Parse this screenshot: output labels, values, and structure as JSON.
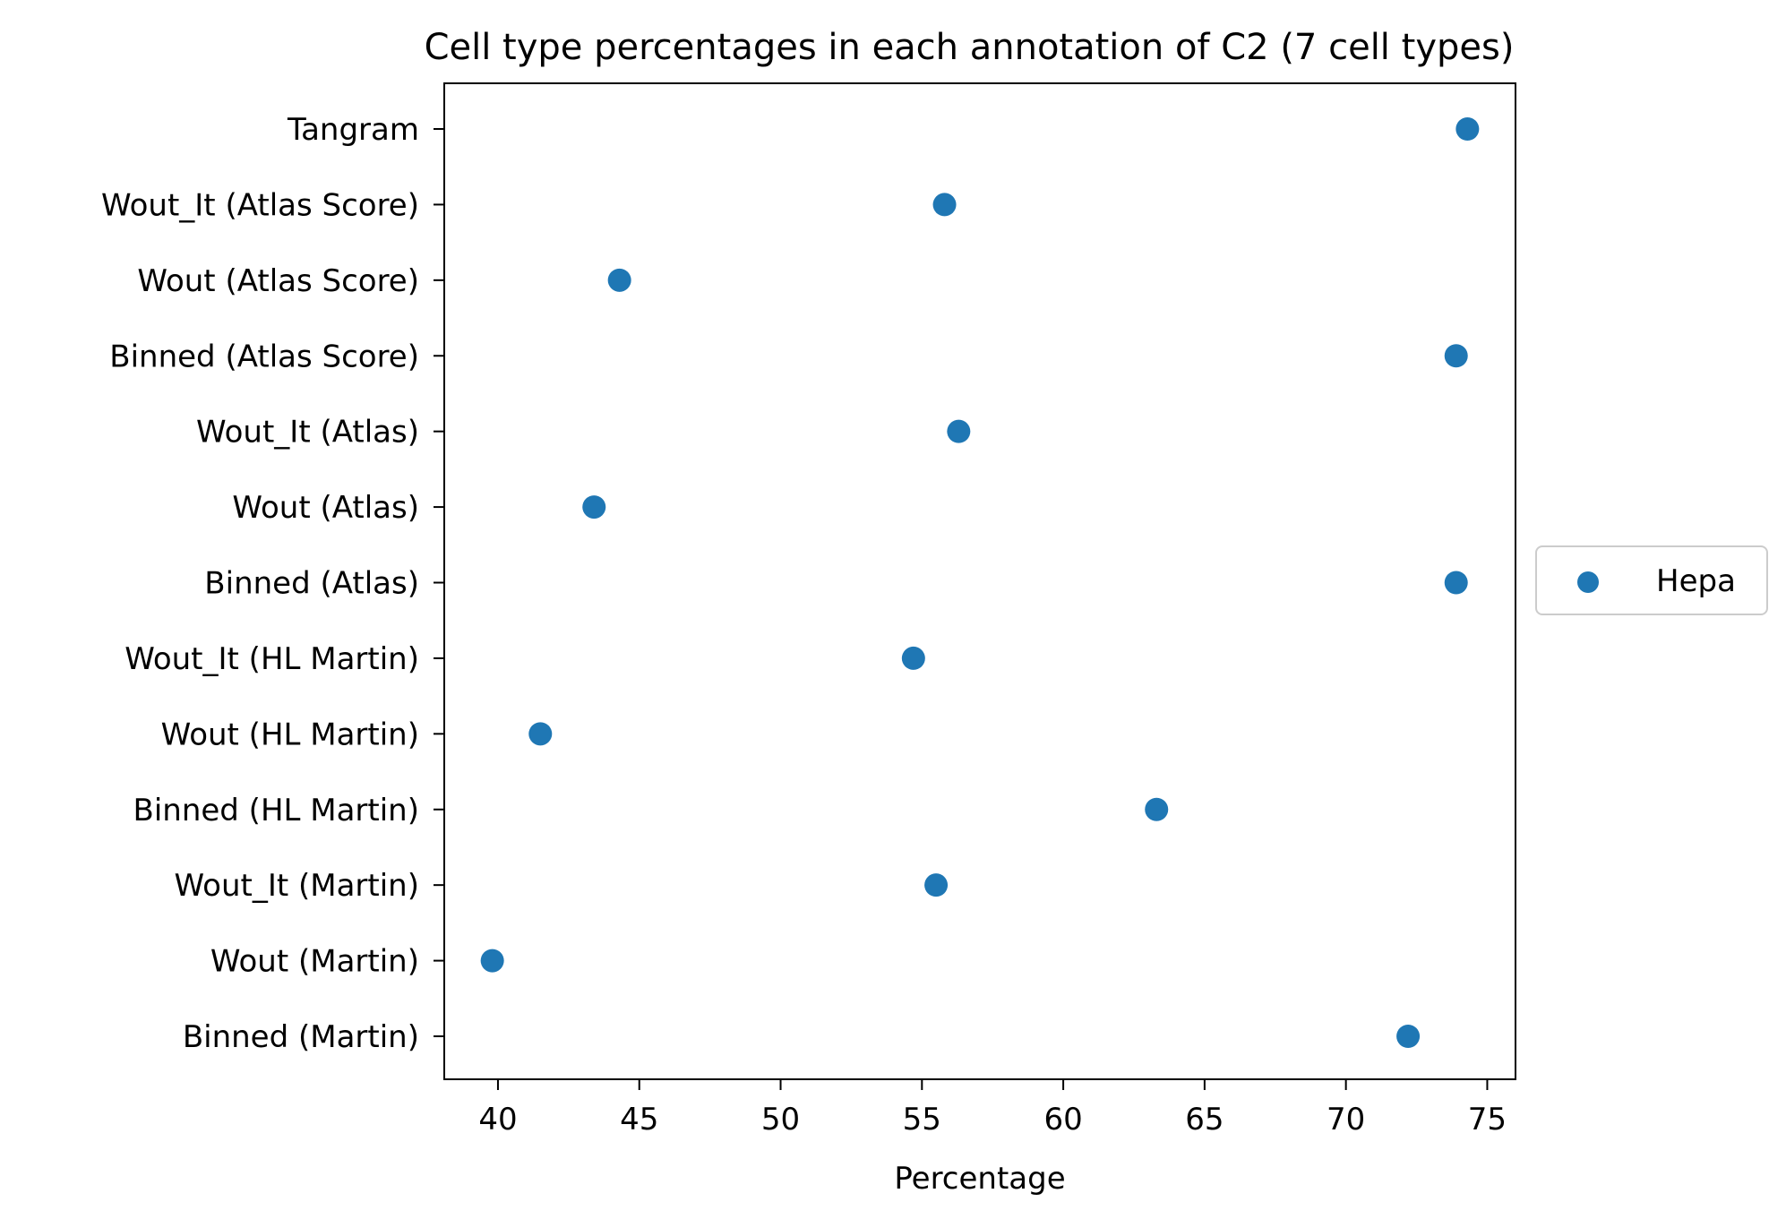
{
  "chart_data": {
    "type": "scatter",
    "title": "Cell type percentages in each annotation of C2 (7 cell types)",
    "xlabel": "Percentage",
    "ylabel": "",
    "xlim": [
      38.1,
      76.0
    ],
    "xticks": [
      40,
      45,
      50,
      55,
      60,
      65,
      70,
      75
    ],
    "categories": [
      "Binned (Martin)",
      "Wout (Martin)",
      "Wout_It (Martin)",
      "Binned (HL Martin)",
      "Wout (HL Martin)",
      "Wout_It (HL Martin)",
      "Binned (Atlas)",
      "Wout (Atlas)",
      "Wout_It (Atlas)",
      "Binned (Atlas Score)",
      "Wout (Atlas Score)",
      "Wout_It (Atlas Score)",
      "Tangram"
    ],
    "series": [
      {
        "name": "Hepa",
        "color": "#1f77b4",
        "values": [
          72.2,
          39.8,
          55.5,
          63.3,
          41.5,
          54.7,
          73.9,
          43.4,
          56.3,
          73.9,
          44.3,
          55.8,
          74.3
        ]
      }
    ],
    "legend": "outside-right",
    "grid": false
  }
}
